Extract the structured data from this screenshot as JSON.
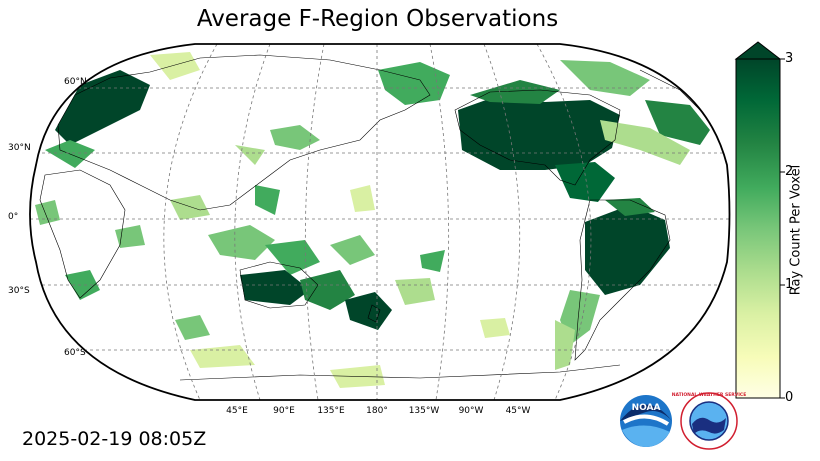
{
  "title": "Average F-Region Observations",
  "timestamp": "2025-02-19 08:05Z",
  "map": {
    "projection": "Robinson",
    "central_longitude": 180,
    "gridlines": "dashed",
    "lat_labels": [
      "60°N",
      "30°N",
      "0°",
      "30°S",
      "60°S"
    ],
    "lon_labels": [
      "45°E",
      "90°E",
      "135°E",
      "180°",
      "135°W",
      "90°W",
      "45°W"
    ]
  },
  "colorbar": {
    "label": "Ray Count Per Voxel",
    "ticks": [
      "0",
      "1",
      "2",
      "3"
    ],
    "min": 0,
    "max": 3,
    "extend": "max",
    "colormap": "YlGn",
    "colors": [
      "#ffffe5",
      "#f7fcb9",
      "#d9f0a3",
      "#addd8e",
      "#78c679",
      "#41ab5d",
      "#238443",
      "#006837",
      "#004529"
    ]
  },
  "logos": {
    "noaa": "NOAA",
    "nws": "NATIONAL WEATHER SERVICE"
  }
}
